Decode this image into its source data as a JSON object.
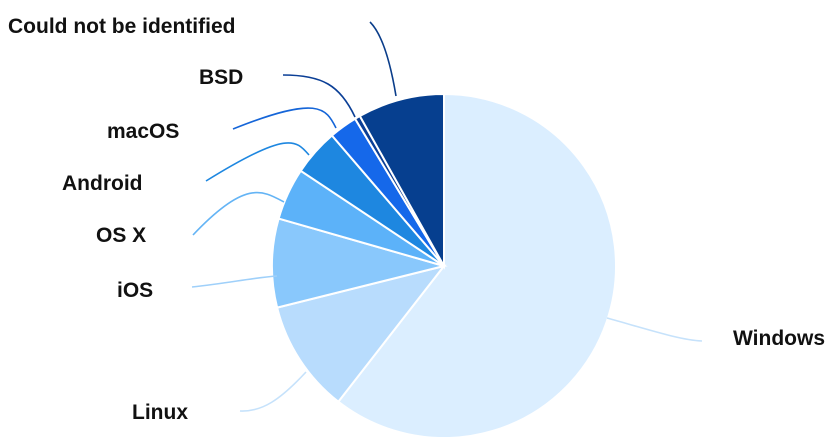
{
  "chart_data": {
    "type": "pie",
    "title": "",
    "start_angle_deg": 0,
    "direction": "clockwise",
    "slices": [
      {
        "label": "Windows",
        "value": 59.5,
        "color": "#dbeeff"
      },
      {
        "label": "Linux",
        "value": 10.4,
        "color": "#b8dcfd"
      },
      {
        "label": "iOS",
        "value": 8.2,
        "color": "#89c8fc"
      },
      {
        "label": "OS X",
        "value": 4.8,
        "color": "#5cb2f9"
      },
      {
        "label": "Android",
        "value": 4.3,
        "color": "#1e87e0"
      },
      {
        "label": "macOS",
        "value": 2.6,
        "color": "#1568ea"
      },
      {
        "label": "BSD",
        "value": 0.5,
        "color": "#0b3f96"
      },
      {
        "label": "Could not be identified",
        "value": 8.0,
        "color": "#063f8f"
      }
    ],
    "leader_colors": [
      "#c6e2fb",
      "#c6e2fb",
      "#9fd0fa",
      "#64b4f5",
      "#1e87e0",
      "#1565d8",
      "#0b3f96",
      "#0a3d8a"
    ]
  }
}
